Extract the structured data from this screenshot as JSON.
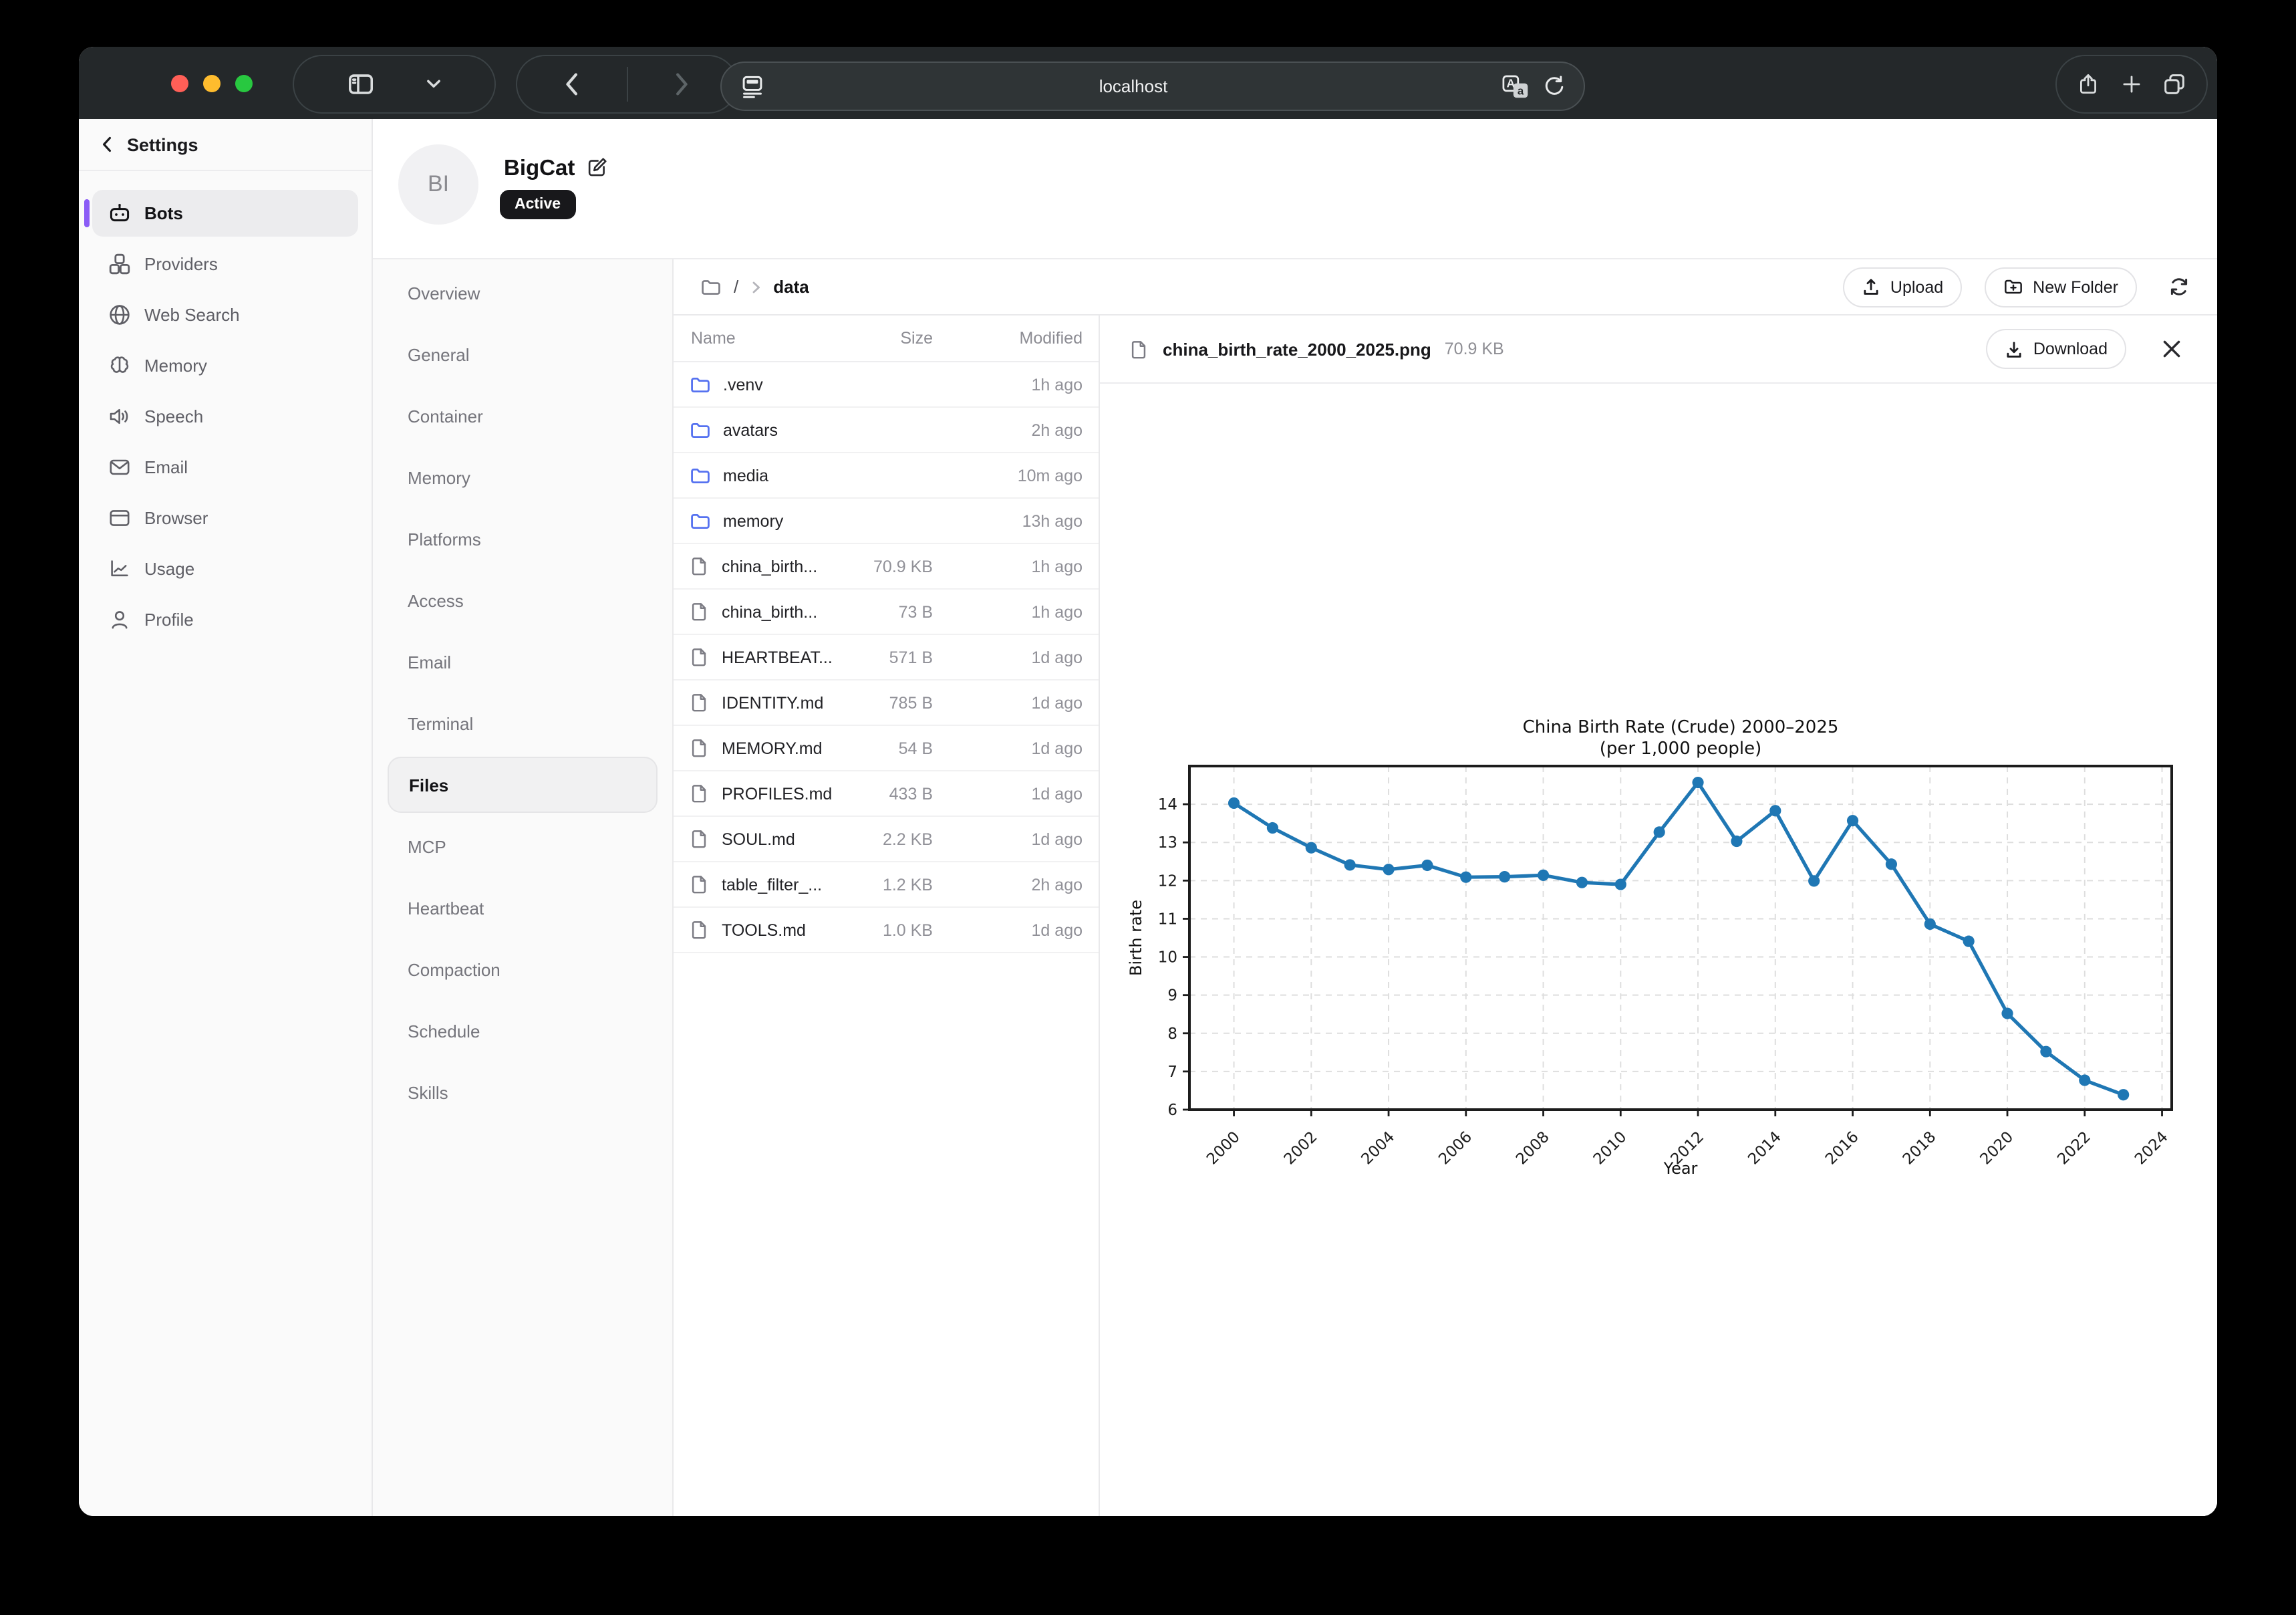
{
  "titlebar": {
    "url": "localhost"
  },
  "sidebar": {
    "back_label": "Settings",
    "items": [
      {
        "label": "Bots",
        "icon": "bot-icon",
        "active": true
      },
      {
        "label": "Providers",
        "icon": "providers-icon"
      },
      {
        "label": "Web Search",
        "icon": "globe-icon"
      },
      {
        "label": "Memory",
        "icon": "brain-icon"
      },
      {
        "label": "Speech",
        "icon": "speech-icon"
      },
      {
        "label": "Email",
        "icon": "envelope-icon"
      },
      {
        "label": "Browser",
        "icon": "browser-icon"
      },
      {
        "label": "Usage",
        "icon": "usage-icon"
      },
      {
        "label": "Profile",
        "icon": "profile-icon"
      }
    ]
  },
  "bot_header": {
    "initials": "BI",
    "name": "BigCat",
    "status_badge": "Active"
  },
  "tabs": [
    {
      "label": "Overview"
    },
    {
      "label": "General"
    },
    {
      "label": "Container"
    },
    {
      "label": "Memory"
    },
    {
      "label": "Platforms"
    },
    {
      "label": "Access"
    },
    {
      "label": "Email"
    },
    {
      "label": "Terminal"
    },
    {
      "label": "Files",
      "active": true
    },
    {
      "label": "MCP"
    },
    {
      "label": "Heartbeat"
    },
    {
      "label": "Compaction"
    },
    {
      "label": "Schedule"
    },
    {
      "label": "Skills"
    }
  ],
  "files_panel": {
    "breadcrumb": {
      "root": "/",
      "current": "data"
    },
    "toolbar": {
      "upload": "Upload",
      "new_folder": "New Folder"
    },
    "table": {
      "headers": [
        "Name",
        "Size",
        "Modified"
      ],
      "rows": [
        {
          "name": ".venv",
          "type": "folder",
          "size": "",
          "modified": "1h ago"
        },
        {
          "name": "avatars",
          "type": "folder",
          "size": "",
          "modified": "2h ago"
        },
        {
          "name": "media",
          "type": "folder",
          "size": "",
          "modified": "10m ago"
        },
        {
          "name": "memory",
          "type": "folder",
          "size": "",
          "modified": "13h ago"
        },
        {
          "name": "china_birth...",
          "type": "file",
          "size": "70.9 KB",
          "modified": "1h ago"
        },
        {
          "name": "china_birth...",
          "type": "file",
          "size": "73 B",
          "modified": "1h ago"
        },
        {
          "name": "HEARTBEAT...",
          "type": "file",
          "size": "571 B",
          "modified": "1d ago"
        },
        {
          "name": "IDENTITY.md",
          "type": "file",
          "size": "785 B",
          "modified": "1d ago"
        },
        {
          "name": "MEMORY.md",
          "type": "file",
          "size": "54 B",
          "modified": "1d ago"
        },
        {
          "name": "PROFILES.md",
          "type": "file",
          "size": "433 B",
          "modified": "1d ago"
        },
        {
          "name": "SOUL.md",
          "type": "file",
          "size": "2.2 KB",
          "modified": "1d ago"
        },
        {
          "name": "table_filter_...",
          "type": "file",
          "size": "1.2 KB",
          "modified": "2h ago"
        },
        {
          "name": "TOOLS.md",
          "type": "file",
          "size": "1.0 KB",
          "modified": "1d ago"
        }
      ]
    }
  },
  "preview": {
    "filename": "china_birth_rate_2000_2025.png",
    "filesize": "70.9 KB",
    "download_label": "Download"
  },
  "accents": {
    "selected_accent": "#8b5cf6",
    "folder_icon": "#5672f0",
    "badge_bg": "#18181b",
    "chart_line": "#1f77b4"
  },
  "chart_data": {
    "type": "line",
    "title": "China Birth Rate (Crude) 2000–2025",
    "subtitle": "(per 1,000 people)",
    "xlabel": "Year",
    "ylabel": "Birth rate",
    "x": [
      2000,
      2001,
      2002,
      2003,
      2004,
      2005,
      2006,
      2007,
      2008,
      2009,
      2010,
      2011,
      2012,
      2013,
      2014,
      2015,
      2016,
      2017,
      2018,
      2019,
      2020,
      2021,
      2022,
      2023
    ],
    "y": [
      14.03,
      13.38,
      12.86,
      12.41,
      12.29,
      12.4,
      12.09,
      12.1,
      12.14,
      11.95,
      11.9,
      13.27,
      14.57,
      13.03,
      13.83,
      11.99,
      13.57,
      12.43,
      10.86,
      10.41,
      8.52,
      7.52,
      6.77,
      6.39
    ],
    "xticks": [
      2000,
      2002,
      2004,
      2006,
      2008,
      2010,
      2012,
      2014,
      2016,
      2018,
      2020,
      2022,
      2024
    ],
    "yticks": [
      6,
      7,
      8,
      9,
      10,
      11,
      12,
      13,
      14
    ],
    "xlim": [
      1998.85,
      2024.25
    ],
    "ylim": [
      6,
      15
    ],
    "grid": true,
    "legend": null,
    "line_color": "#1f77b4",
    "marker": "o"
  }
}
